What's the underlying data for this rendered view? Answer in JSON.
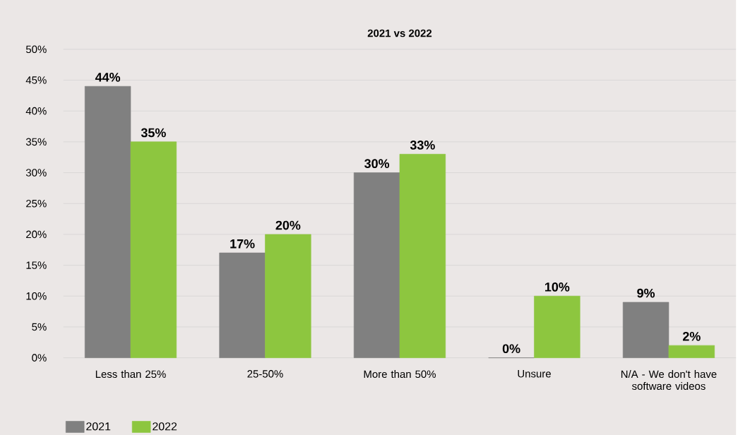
{
  "chart_data": {
    "type": "bar",
    "title": "2021 vs 2022",
    "categories": [
      "Less than 25%",
      "25-50%",
      "More than 50%",
      "Unsure",
      "N/A - We don't have software videos"
    ],
    "series": [
      {
        "name": "2021",
        "color": "#808080",
        "values": [
          44,
          17,
          30,
          0,
          9
        ],
        "value_labels": [
          "44%",
          "17%",
          "30%",
          "0%",
          "9%"
        ]
      },
      {
        "name": "2022",
        "color": "#8dc63f",
        "values": [
          35,
          20,
          33,
          10,
          2
        ],
        "value_labels": [
          "35%",
          "20%",
          "33%",
          "10%",
          "2%"
        ]
      }
    ],
    "ylim": [
      0,
      50
    ],
    "yticks": [
      {
        "value": 0,
        "label": "0%"
      },
      {
        "value": 5,
        "label": "5%"
      },
      {
        "value": 10,
        "label": "10%"
      },
      {
        "value": 15,
        "label": "15%"
      },
      {
        "value": 20,
        "label": "20%"
      },
      {
        "value": 25,
        "label": "25%"
      },
      {
        "value": 30,
        "label": "30%"
      },
      {
        "value": 35,
        "label": "35%"
      },
      {
        "value": 40,
        "label": "40%"
      },
      {
        "value": 45,
        "label": "45%"
      },
      {
        "value": 50,
        "label": "50%"
      }
    ],
    "grid": "y",
    "legend": "bottom left"
  }
}
